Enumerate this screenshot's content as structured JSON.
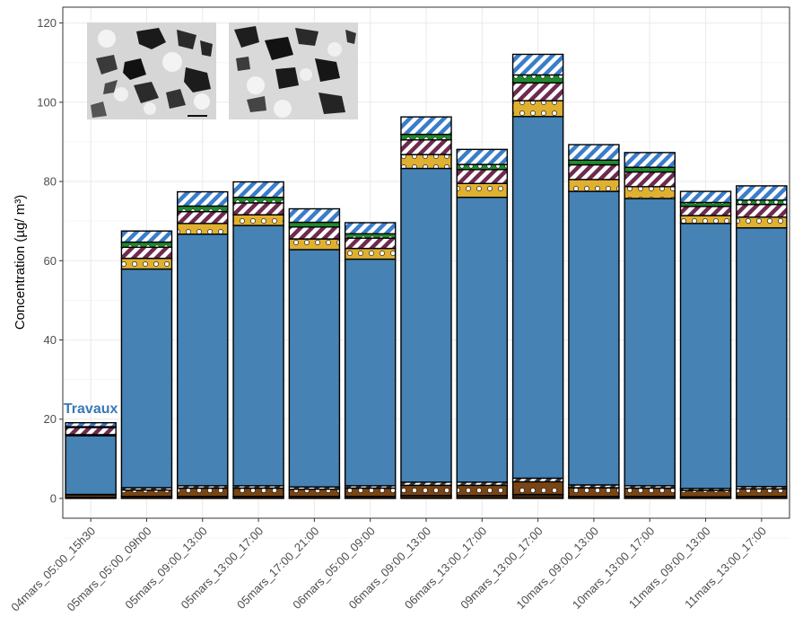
{
  "chart_data": {
    "type": "bar",
    "stacked": true,
    "ylabel": "Concentration (µg/ m³)",
    "ylim": [
      -5,
      124
    ],
    "yticks": [
      0,
      20,
      40,
      60,
      80,
      100,
      120
    ],
    "grid": true,
    "legend": "none",
    "annotation": {
      "text": "Travaux",
      "category": "04mars_05:00_15h30",
      "y": 21.5
    },
    "categories": [
      "04mars_05:00_15h30",
      "05mars_05:00_09h00",
      "05mars_09:00_13:00",
      "05mars_13:00_17:00",
      "05mars_17:00_21:00",
      "06mars_05:00_09:00",
      "06mars_09:00_13:00",
      "06mars_13:00_17:00",
      "09mars_13:00_17:00",
      "10mars_09:00_13:00",
      "10mars_13:00_17:00",
      "11mars_09:00_13:00",
      "11mars_13:00_17:00"
    ],
    "series": [
      {
        "values": [
          0.3,
          0.5,
          0.5,
          0.5,
          0.5,
          0.5,
          0.7,
          0.7,
          1.0,
          0.5,
          0.5,
          0.4,
          0.5
        ]
      },
      {
        "values": [
          0.6,
          1.6,
          2.1,
          2.1,
          1.8,
          2.1,
          2.6,
          2.6,
          3.2,
          2.2,
          2.1,
          1.6,
          1.9
        ]
      },
      {
        "values": [
          0.1,
          0.6,
          0.6,
          0.6,
          0.6,
          0.6,
          0.8,
          0.8,
          0.9,
          0.7,
          0.6,
          0.5,
          0.6
        ]
      },
      {
        "values": [
          14.8,
          55.2,
          63.5,
          65.7,
          59.9,
          57.2,
          79.2,
          71.9,
          91.3,
          74.1,
          72.5,
          66.9,
          65.3
        ]
      },
      {
        "values": [
          0.3,
          2.7,
          2.7,
          2.7,
          2.7,
          2.7,
          3.5,
          3.5,
          4.0,
          3.0,
          3.0,
          2.0,
          2.7
        ]
      },
      {
        "values": [
          1.8,
          2.8,
          3.0,
          3.0,
          3.0,
          2.6,
          3.7,
          3.5,
          4.5,
          3.7,
          3.7,
          2.3,
          3.2
        ]
      },
      {
        "values": [
          0.2,
          1.3,
          1.4,
          1.4,
          1.2,
          1.1,
          1.4,
          1.3,
          2.0,
          1.2,
          1.2,
          1.0,
          1.1
        ]
      },
      {
        "values": [
          1.0,
          2.8,
          3.6,
          3.9,
          3.4,
          2.8,
          4.4,
          3.8,
          5.2,
          3.9,
          3.7,
          2.8,
          3.6
        ]
      }
    ]
  },
  "colors": {
    "bg": "#ffffff",
    "grid_major": "#ebebeb",
    "grid_minor": "#f5f5f5",
    "annotation": "#3a78b5",
    "segment_fills": [
      "#3b2410",
      "#7a4514",
      "#3a3a3a",
      "#4682b4",
      "#e0b030",
      "#6e2a4f",
      "#1f8a2d",
      "#3a7dc9"
    ],
    "segment_patterns": [
      "solid",
      "dots",
      "stripes",
      "solid",
      "dots",
      "stripes",
      "dots",
      "stripes"
    ]
  },
  "insets": [
    {
      "name": "microscopy-image-1"
    },
    {
      "name": "microscopy-image-2"
    }
  ]
}
